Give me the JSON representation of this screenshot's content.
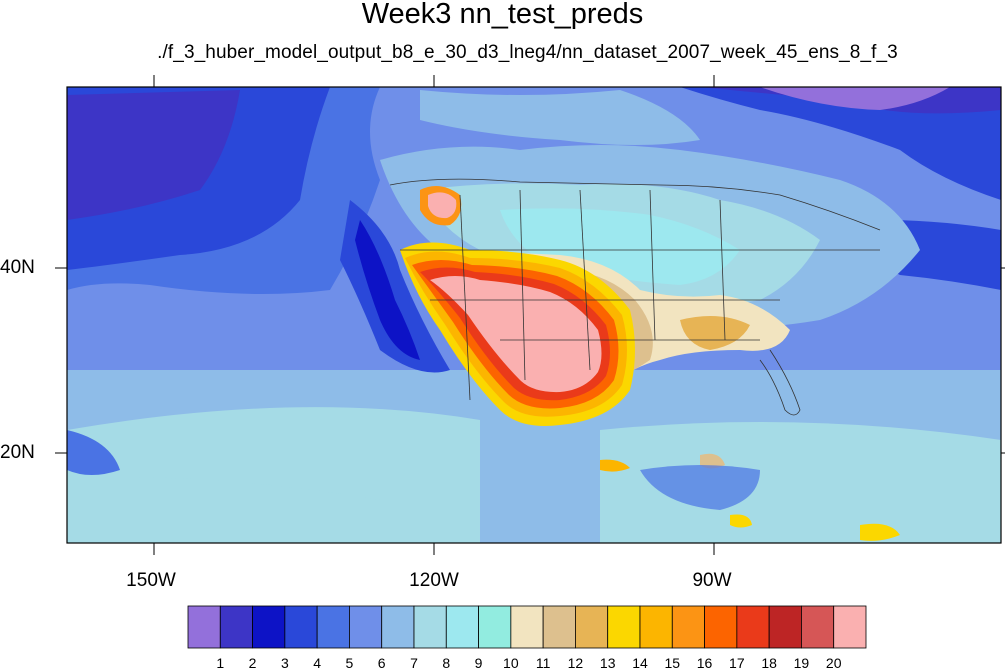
{
  "title": "Week3 nn_test_preds",
  "subtitle": "./f_3_huber_model_output_b8_e_30_d3_lneg4/nn_dataset_2007_week_45_ens_8_f_3",
  "x_axis": {
    "ticks": [
      "150W",
      "120W",
      "90W"
    ],
    "tick_lons": [
      -150,
      -120,
      -90
    ]
  },
  "y_axis": {
    "ticks": [
      "40N",
      "20N"
    ],
    "tick_lats": [
      40,
      20
    ]
  },
  "map_extent": {
    "lon_min": -159,
    "lon_max": -60,
    "lat_min": 11,
    "lat_max": 59
  },
  "colorbar": {
    "labels": [
      "1",
      "2",
      "3",
      "4",
      "5",
      "6",
      "7",
      "8",
      "9",
      "10",
      "11",
      "12",
      "13",
      "14",
      "15",
      "16",
      "17",
      "18",
      "19",
      "20"
    ],
    "colors": [
      "#9370db",
      "#3d35c6",
      "#0d13c6",
      "#2a48d9",
      "#4a73e4",
      "#6f8fe9",
      "#8ebce8",
      "#a5dbe6",
      "#9de8ef",
      "#92ece0",
      "#f2e4c0",
      "#ddc08e",
      "#e7b455",
      "#fbd700",
      "#fcb500",
      "#fc9414",
      "#fc6400",
      "#ea3a1a",
      "#bd2525",
      "#d65656",
      "#fab0b0"
    ]
  }
}
